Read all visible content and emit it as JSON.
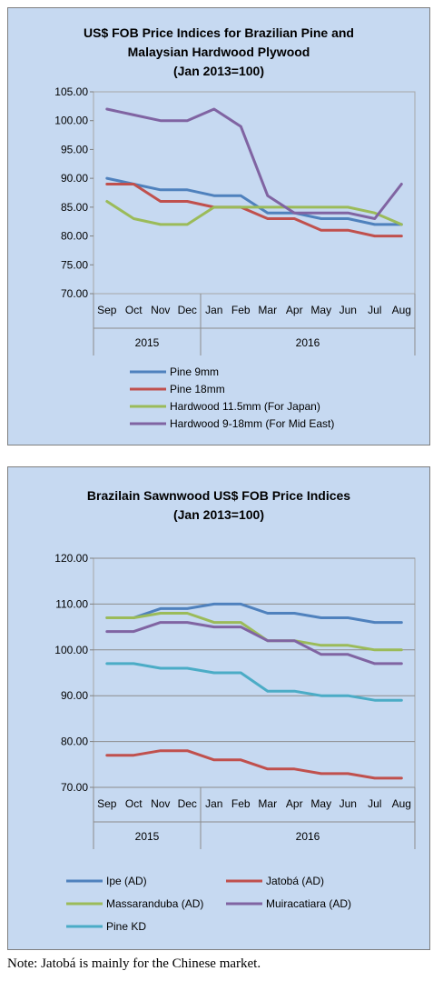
{
  "chart_data": [
    {
      "type": "line",
      "title_lines": [
        "US$ FOB Price Indices for Brazilian Pine and",
        "Malaysian Hardwood Plywood",
        "(Jan 2013=100)"
      ],
      "categories": [
        "Sep",
        "Oct",
        "Nov",
        "Dec",
        "Jan",
        "Feb",
        "Mar",
        "Apr",
        "May",
        "Jun",
        "Jul",
        "Aug"
      ],
      "year_groups": [
        {
          "label": "2015",
          "span": 4
        },
        {
          "label": "2016",
          "span": 8
        }
      ],
      "ylim": [
        70,
        105
      ],
      "y_ticks": [
        "70.00",
        "75.00",
        "80.00",
        "85.00",
        "90.00",
        "95.00",
        "100.00",
        "105.00"
      ],
      "grid": false,
      "legend_position": "bottom",
      "series": [
        {
          "name": "Pine 9mm",
          "color": "#4f81bd",
          "values": [
            90,
            89,
            88,
            88,
            87,
            87,
            84,
            84,
            83,
            83,
            82,
            82
          ]
        },
        {
          "name": "Pine 18mm",
          "color": "#c0504d",
          "values": [
            89,
            89,
            86,
            86,
            85,
            85,
            83,
            83,
            81,
            81,
            80,
            80
          ]
        },
        {
          "name": "Hardwood 11.5mm (For Japan)",
          "color": "#9bbb59",
          "values": [
            86,
            83,
            82,
            82,
            85,
            85,
            85,
            85,
            85,
            85,
            84,
            82
          ]
        },
        {
          "name": "Hardwood 9-18mm (For Mid East)",
          "color": "#8064a2",
          "values": [
            102,
            101,
            100,
            100,
            102,
            99,
            87,
            84,
            84,
            84,
            83,
            89
          ]
        }
      ]
    },
    {
      "type": "line",
      "title_lines": [
        "Brazilain Sawnwood US$ FOB Price Indices",
        "(Jan 2013=100)"
      ],
      "categories": [
        "Sep",
        "Oct",
        "Nov",
        "Dec",
        "Jan",
        "Feb",
        "Mar",
        "Apr",
        "May",
        "Jun",
        "Jul",
        "Aug"
      ],
      "year_groups": [
        {
          "label": "2015",
          "span": 4
        },
        {
          "label": "2016",
          "span": 8
        }
      ],
      "ylim": [
        70,
        120
      ],
      "y_ticks": [
        "70.00",
        "80.00",
        "90.00",
        "100.00",
        "110.00",
        "120.00"
      ],
      "grid": true,
      "legend_position": "bottom",
      "series": [
        {
          "name": "Ipe (AD)",
          "color": "#4f81bd",
          "values": [
            107,
            107,
            109,
            109,
            110,
            110,
            108,
            108,
            107,
            107,
            106,
            106
          ]
        },
        {
          "name": "Jatobá (AD)",
          "color": "#c0504d",
          "values": [
            77,
            77,
            78,
            78,
            76,
            76,
            74,
            74,
            73,
            73,
            72,
            72
          ]
        },
        {
          "name": "Massaranduba (AD)",
          "color": "#9bbb59",
          "values": [
            107,
            107,
            108,
            108,
            106,
            106,
            102,
            102,
            101,
            101,
            100,
            100
          ]
        },
        {
          "name": "Muiracatiara (AD)",
          "color": "#8064a2",
          "values": [
            104,
            104,
            106,
            106,
            105,
            105,
            102,
            102,
            99,
            99,
            97,
            97
          ]
        },
        {
          "name": "Pine KD",
          "color": "#4bacc6",
          "values": [
            97,
            97,
            96,
            96,
            95,
            95,
            91,
            91,
            90,
            90,
            89,
            89
          ]
        }
      ]
    }
  ],
  "note": "Note: Jatobá is mainly for the Chinese market."
}
